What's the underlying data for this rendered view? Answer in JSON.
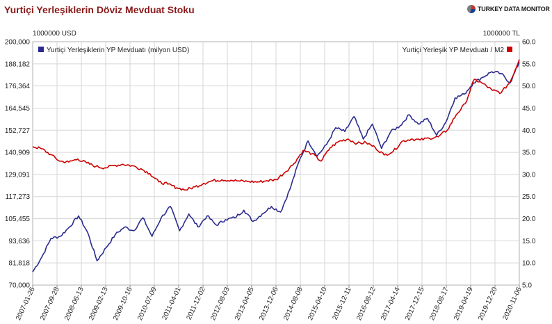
{
  "header": {
    "title": "Yurtiçi Yerleşiklerin Döviz Mevduat Stoku",
    "brand": "TURKEY DATA MONITOR"
  },
  "chart_data": {
    "type": "line",
    "left_axis_unit": "1000000 USD",
    "right_axis_unit": "1000000 TL",
    "left_ticks": [
      "70,000",
      "81,818",
      "93,636",
      "105,455",
      "117,273",
      "129,091",
      "140,909",
      "152,727",
      "164,545",
      "176,364",
      "188,182",
      "200,000"
    ],
    "right_ticks": [
      "5.0",
      "10.0",
      "15.0",
      "20.0",
      "25.0",
      "30.0",
      "35.0",
      "40.0",
      "45.0",
      "50.0",
      "55.0",
      "60.0"
    ],
    "x_ticks": [
      "2007-01-26",
      "2007-09-28",
      "2008-06-13",
      "2009-02-13",
      "2009-10-16",
      "2010-07-09",
      "2011-04-01",
      "2011-12-02",
      "2012-08-03",
      "2013-04-05",
      "2013-12-06",
      "2014-08-08",
      "2015-04-10",
      "2015-12-11",
      "2016-08-12",
      "2017-04-14",
      "2017-12-15",
      "2018-08-17",
      "2019-04-19",
      "2019-12-20",
      "2020-11-06"
    ],
    "ylim_left": [
      70000,
      200000
    ],
    "ylim_right": [
      5.0,
      60.0
    ],
    "grid": true,
    "legend_placement": "top",
    "series": [
      {
        "name": "Yurtiçi Yerleşiklerin YP Mevduatı (milyon USD)",
        "axis": "left",
        "color": "#2b2b8f",
        "values": [
          77000,
          85000,
          95000,
          96000,
          101000,
          107000,
          98000,
          83000,
          90000,
          97000,
          101000,
          99000,
          106000,
          96000,
          106000,
          112000,
          99000,
          108000,
          101000,
          107000,
          102000,
          105000,
          106000,
          110000,
          104000,
          108000,
          112000,
          109000,
          121000,
          136000,
          147000,
          139000,
          145000,
          154000,
          152000,
          160000,
          148000,
          156000,
          143000,
          152000,
          155000,
          161000,
          156000,
          159000,
          150000,
          157000,
          170000,
          172000,
          178000,
          181000,
          184000,
          183000,
          178000,
          189000
        ]
      },
      {
        "name": "Yurtiçi Yerleşik YP Mevduatı / M2",
        "axis": "right",
        "color": "#cc0000",
        "values": [
          36.3,
          35.8,
          34.5,
          33.0,
          32.8,
          33.5,
          32.6,
          31.8,
          31.5,
          32.0,
          32.3,
          32.0,
          31.3,
          30.2,
          28.3,
          27.8,
          27.0,
          26.5,
          27.2,
          28.0,
          28.6,
          28.8,
          28.7,
          28.5,
          28.4,
          28.3,
          28.6,
          28.8,
          30.5,
          32.5,
          35.4,
          34.7,
          33.0,
          36.0,
          37.5,
          38.0,
          37.0,
          37.2,
          36.1,
          34.4,
          35.2,
          37.5,
          38.0,
          37.8,
          38.2,
          38.5,
          40.0,
          43.5,
          46.0,
          51.5,
          50.5,
          49.0,
          48.5,
          51.0,
          56.0
        ]
      }
    ]
  }
}
